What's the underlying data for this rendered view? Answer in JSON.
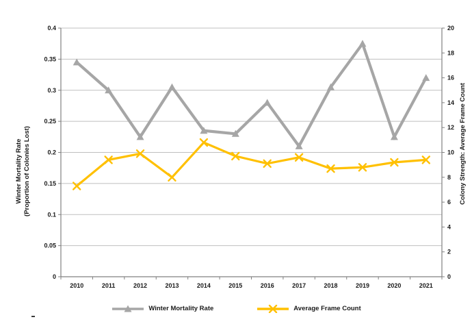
{
  "chart_data": {
    "type": "line",
    "title": "",
    "categories": [
      "2010",
      "2011",
      "2012",
      "2013",
      "2014",
      "2015",
      "2016",
      "2017",
      "2018",
      "2019",
      "2020",
      "2021"
    ],
    "series": [
      {
        "name": "Winter Mortality Rate",
        "axis": "left",
        "color": "#A6A6A6",
        "marker": "triangle",
        "values": [
          0.345,
          0.3,
          0.225,
          0.305,
          0.235,
          0.23,
          0.28,
          0.21,
          0.305,
          0.375,
          0.225,
          0.32
        ]
      },
      {
        "name": "Average Frame Count",
        "axis": "right",
        "color": "#FFC000",
        "marker": "x",
        "values": [
          7.3,
          9.4,
          9.9,
          8.0,
          10.8,
          9.7,
          9.1,
          9.6,
          8.7,
          8.8,
          9.2,
          9.4
        ]
      }
    ],
    "left_axis": {
      "title_line1": "Winter Mortality Rate",
      "title_line2": "(Proportion of Colonies Lost)",
      "range": [
        0,
        0.4
      ],
      "ticks": [
        "0",
        "0.05",
        "0.1",
        "0.15",
        "0.2",
        "0.25",
        "0.3",
        "0.35",
        "0.4"
      ]
    },
    "right_axis": {
      "title": "Colony Strength: Average Frame Count",
      "range": [
        0,
        20
      ],
      "ticks": [
        "0",
        "2",
        "4",
        "6",
        "8",
        "10",
        "12",
        "14",
        "16",
        "18",
        "20"
      ]
    },
    "legend": {
      "position": "bottom",
      "items": [
        "Winter Mortality Rate",
        "Average Frame Count"
      ]
    },
    "grid": true,
    "colors": {
      "gridline": "#BFBFBF",
      "axis": "#808080",
      "text": "#1a1a1a",
      "background": "#ffffff"
    }
  }
}
